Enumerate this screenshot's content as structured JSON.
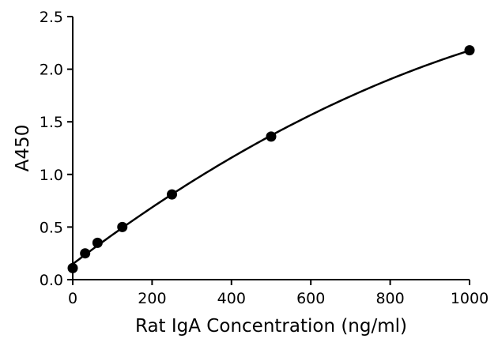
{
  "chart_data": {
    "type": "scatter",
    "xlabel": "Rat IgA Concentration (ng/ml)",
    "ylabel": "A450",
    "xlim": [
      0,
      1000
    ],
    "ylim": [
      0,
      2.5
    ],
    "x_ticks": [
      0,
      200,
      400,
      600,
      800,
      1000
    ],
    "y_ticks": [
      0.0,
      0.5,
      1.0,
      1.5,
      2.0,
      2.5
    ],
    "x_tick_labels": [
      "0",
      "200",
      "400",
      "600",
      "800",
      "1000"
    ],
    "y_tick_labels": [
      "0.0",
      "0.5",
      "1.0",
      "1.5",
      "2.0",
      "2.5"
    ],
    "grid": false,
    "legend": "none",
    "series": [
      {
        "x": [
          0,
          31.25,
          62.5,
          125,
          250,
          500,
          1000
        ],
        "y": [
          0.11,
          0.25,
          0.35,
          0.5,
          0.81,
          1.36,
          2.18
        ],
        "fit": "smooth curve"
      }
    ],
    "colors": {
      "marker": "#000000",
      "line": "#000000"
    }
  }
}
